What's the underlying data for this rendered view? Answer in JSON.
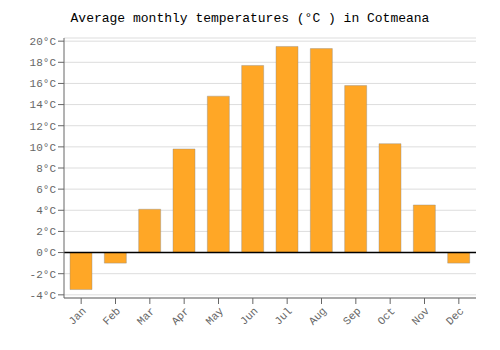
{
  "chart_data": {
    "type": "bar",
    "title": "Average monthly temperatures (°C ) in Cotmeana",
    "categories": [
      "Jan",
      "Feb",
      "Mar",
      "Apr",
      "May",
      "Jun",
      "Jul",
      "Aug",
      "Sep",
      "Oct",
      "Nov",
      "Dec"
    ],
    "values": [
      -3.5,
      -1.0,
      4.1,
      9.8,
      14.8,
      17.7,
      19.5,
      19.3,
      15.8,
      10.3,
      4.5,
      -1.0
    ],
    "color": "#FFA726",
    "ylim": [
      -4.3,
      20.3
    ],
    "yticks": [
      {
        "value": -4,
        "label": "-4°C"
      },
      {
        "value": -2,
        "label": "-2°C"
      },
      {
        "value": 0,
        "label": "0°C"
      },
      {
        "value": 2,
        "label": "2°C"
      },
      {
        "value": 4,
        "label": "4°C"
      },
      {
        "value": 6,
        "label": "6°C"
      },
      {
        "value": 8,
        "label": "8°C"
      },
      {
        "value": 10,
        "label": "10°C"
      },
      {
        "value": 12,
        "label": "12°C"
      },
      {
        "value": 14,
        "label": "14°C"
      },
      {
        "value": 16,
        "label": "16°C"
      },
      {
        "value": 18,
        "label": "18°C"
      },
      {
        "value": 20,
        "label": "20°C"
      }
    ],
    "grid": true
  }
}
